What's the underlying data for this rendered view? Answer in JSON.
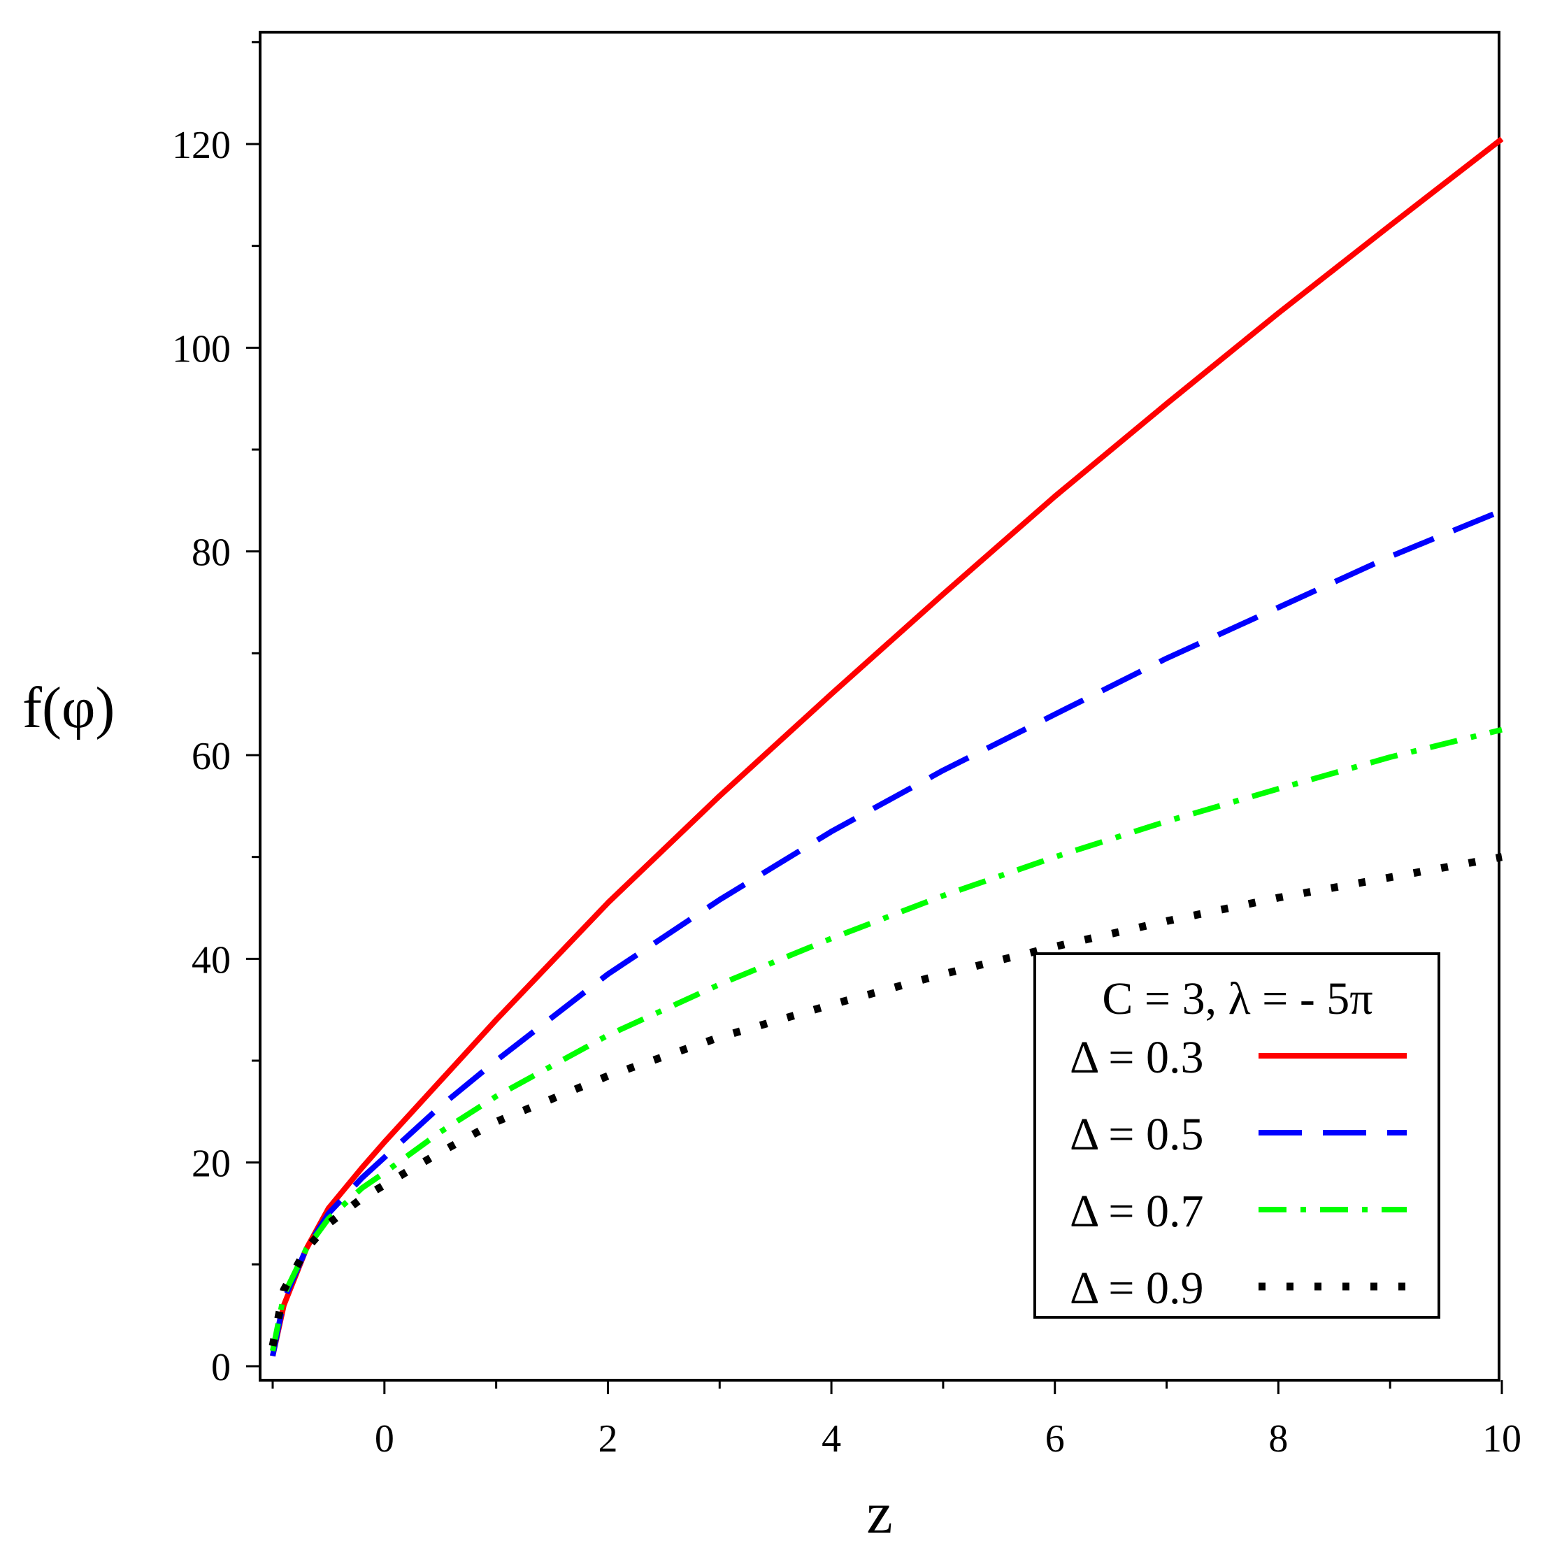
{
  "chart_data": {
    "type": "line",
    "title": "",
    "xlabel": "z",
    "ylabel": "f(φ)",
    "xlim": [
      -1,
      10
    ],
    "ylim": [
      0,
      130
    ],
    "x_ticks": [
      0,
      2,
      4,
      6,
      8,
      10
    ],
    "y_ticks": [
      0,
      20,
      40,
      60,
      80,
      100,
      120
    ],
    "x_tick_labels": [
      "0",
      "2",
      "4",
      "6",
      "8",
      "10"
    ],
    "y_tick_labels": [
      "0",
      "20",
      "40",
      "60",
      "80",
      "100",
      "120"
    ],
    "grid": false,
    "legend": {
      "placement": "bottom-right",
      "title": "C = 3, λ = - 5π"
    },
    "series": [
      {
        "name": "Δ = 0.3",
        "color": "#ff0000",
        "dash": "solid",
        "x": [
          -1,
          -0.9,
          -0.7,
          -0.5,
          -0.2,
          0,
          0.5,
          1,
          2,
          3,
          4,
          5,
          6,
          7,
          8,
          9,
          10
        ],
        "y": [
          1,
          6,
          11.5,
          15.5,
          19.5,
          22,
          28,
          34,
          45.5,
          56,
          66,
          75.8,
          85.4,
          94.5,
          103.4,
          112,
          120.5
        ]
      },
      {
        "name": "Δ = 0.5",
        "color": "#0000ff",
        "dash": "long-dash",
        "x": [
          -1,
          -0.9,
          -0.7,
          -0.5,
          -0.2,
          0,
          0.5,
          1,
          2,
          3,
          4,
          5,
          6,
          7,
          8,
          9,
          10
        ],
        "y": [
          1,
          6.5,
          11.5,
          15,
          18.5,
          20.5,
          25.5,
          30,
          38.5,
          45.8,
          52.5,
          58.5,
          64,
          69.5,
          74.5,
          79.5,
          84
        ]
      },
      {
        "name": "Δ = 0.7",
        "color": "#00ff00",
        "dash": "dash-dot",
        "x": [
          -1,
          -0.9,
          -0.7,
          -0.5,
          -0.2,
          0,
          0.5,
          1,
          2,
          3,
          4,
          5,
          6,
          7,
          8,
          9,
          10
        ],
        "y": [
          1.5,
          7,
          11.5,
          14.5,
          17.5,
          19,
          23,
          26.5,
          32.5,
          37.5,
          42,
          46.2,
          50,
          53.5,
          56.7,
          59.8,
          62.5
        ]
      },
      {
        "name": "Δ = 0.9",
        "color": "#000000",
        "dash": "dotted",
        "x": [
          -1,
          -0.9,
          -0.7,
          -0.5,
          -0.2,
          0,
          0.5,
          1,
          2,
          3,
          4,
          5,
          6,
          7,
          8,
          9,
          10
        ],
        "y": [
          2,
          7.5,
          11.5,
          14,
          16.5,
          17.8,
          21,
          24,
          28.5,
          32.3,
          35.5,
          38.5,
          41.2,
          43.7,
          46,
          48,
          50
        ]
      }
    ]
  }
}
